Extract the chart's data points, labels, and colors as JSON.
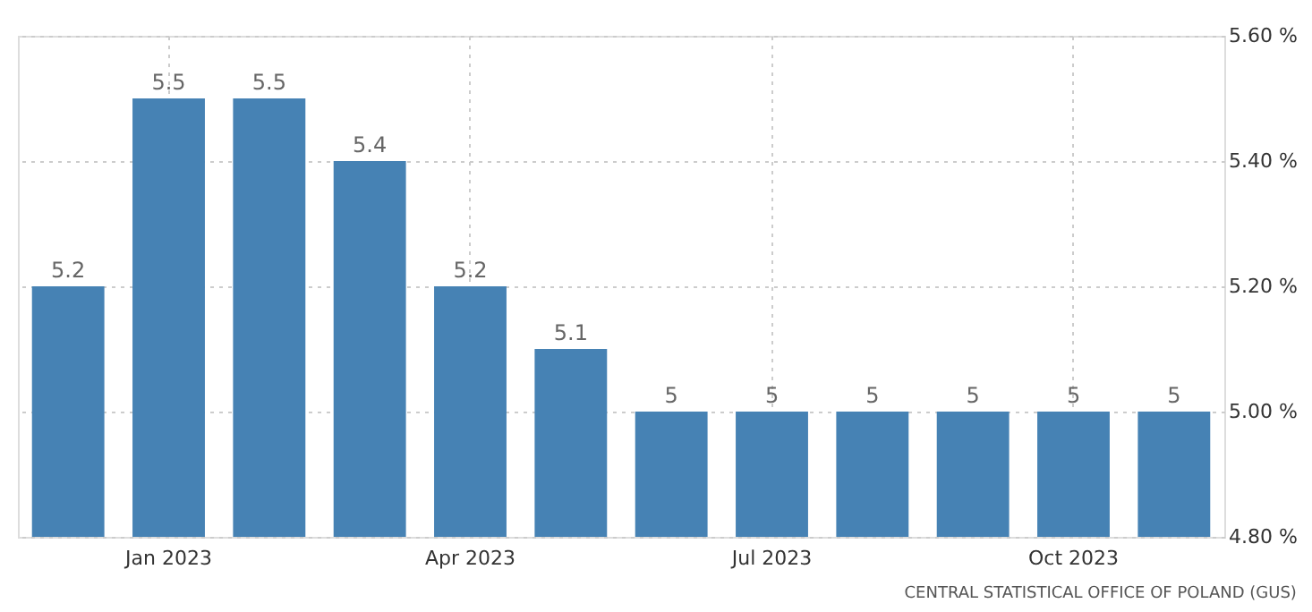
{
  "chart_data": {
    "type": "bar",
    "categories": [
      null,
      "Jan 2023",
      null,
      null,
      "Apr 2023",
      null,
      null,
      "Jul 2023",
      null,
      null,
      "Oct 2023",
      null
    ],
    "values": [
      5.2,
      5.5,
      5.5,
      5.4,
      5.2,
      5.1,
      5,
      5,
      5,
      5,
      5,
      5
    ],
    "color": "#4682b4",
    "ylim": [
      4.8,
      5.6
    ],
    "yticks": [
      {
        "value": 4.8,
        "label": "4.80 %"
      },
      {
        "value": 5.0,
        "label": "5.00 %"
      },
      {
        "value": 5.2,
        "label": "5.20 %"
      },
      {
        "value": 5.4,
        "label": "5.40 %"
      },
      {
        "value": 5.6,
        "label": "5.60 %"
      }
    ],
    "grid": true,
    "data_labels": true,
    "annotations": [
      "CENTRAL STATISTICAL OFFICE OF POLAND (GUS)"
    ]
  }
}
